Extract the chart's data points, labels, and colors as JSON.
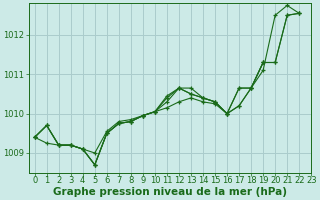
{
  "background_color": "#cceae7",
  "grid_color": "#aacccc",
  "line_color": "#1a6b1a",
  "marker_color": "#1a6b1a",
  "xlabel": "Graphe pression niveau de la mer (hPa)",
  "xlabel_fontsize": 7.5,
  "tick_fontsize": 6,
  "xlim": [
    -0.5,
    23
  ],
  "ylim": [
    1008.5,
    1012.8
  ],
  "yticks": [
    1009,
    1010,
    1011,
    1012
  ],
  "xticks": [
    0,
    1,
    2,
    3,
    4,
    5,
    6,
    7,
    8,
    9,
    10,
    11,
    12,
    13,
    14,
    15,
    16,
    17,
    18,
    19,
    20,
    21,
    22,
    23
  ],
  "series": [
    [
      1009.4,
      1009.7,
      1009.2,
      1009.2,
      1009.1,
      1008.7,
      1009.5,
      1009.75,
      1009.8,
      1009.95,
      1010.05,
      1010.3,
      1010.65,
      1010.65,
      1010.4,
      1010.3,
      1010.0,
      1010.2,
      1010.65,
      1011.1,
      1012.5,
      1012.75,
      1012.55,
      null
    ],
    [
      1009.4,
      1009.25,
      1009.2,
      1009.2,
      1009.1,
      1009.0,
      1009.55,
      1009.8,
      1009.85,
      1009.95,
      1010.05,
      1010.15,
      1010.3,
      1010.4,
      1010.3,
      1010.25,
      1010.0,
      1010.65,
      1010.65,
      1011.3,
      1011.3,
      1012.5,
      1012.55,
      null
    ],
    [
      1009.4,
      1009.7,
      1009.2,
      1009.2,
      1009.1,
      1008.7,
      1009.5,
      1009.75,
      1009.8,
      1009.95,
      1010.05,
      1010.45,
      1010.65,
      1010.5,
      1010.4,
      1010.3,
      1010.0,
      1010.2,
      1010.65,
      1011.3,
      1011.3,
      1012.5,
      1012.55,
      null
    ],
    [
      1009.4,
      1009.7,
      1009.2,
      1009.2,
      1009.1,
      1008.7,
      1009.5,
      1009.75,
      1009.8,
      1009.95,
      1010.05,
      1010.4,
      1010.65,
      1010.5,
      1010.4,
      1010.3,
      1010.0,
      1010.65,
      1010.65,
      1011.3,
      null,
      null,
      null,
      null
    ]
  ]
}
